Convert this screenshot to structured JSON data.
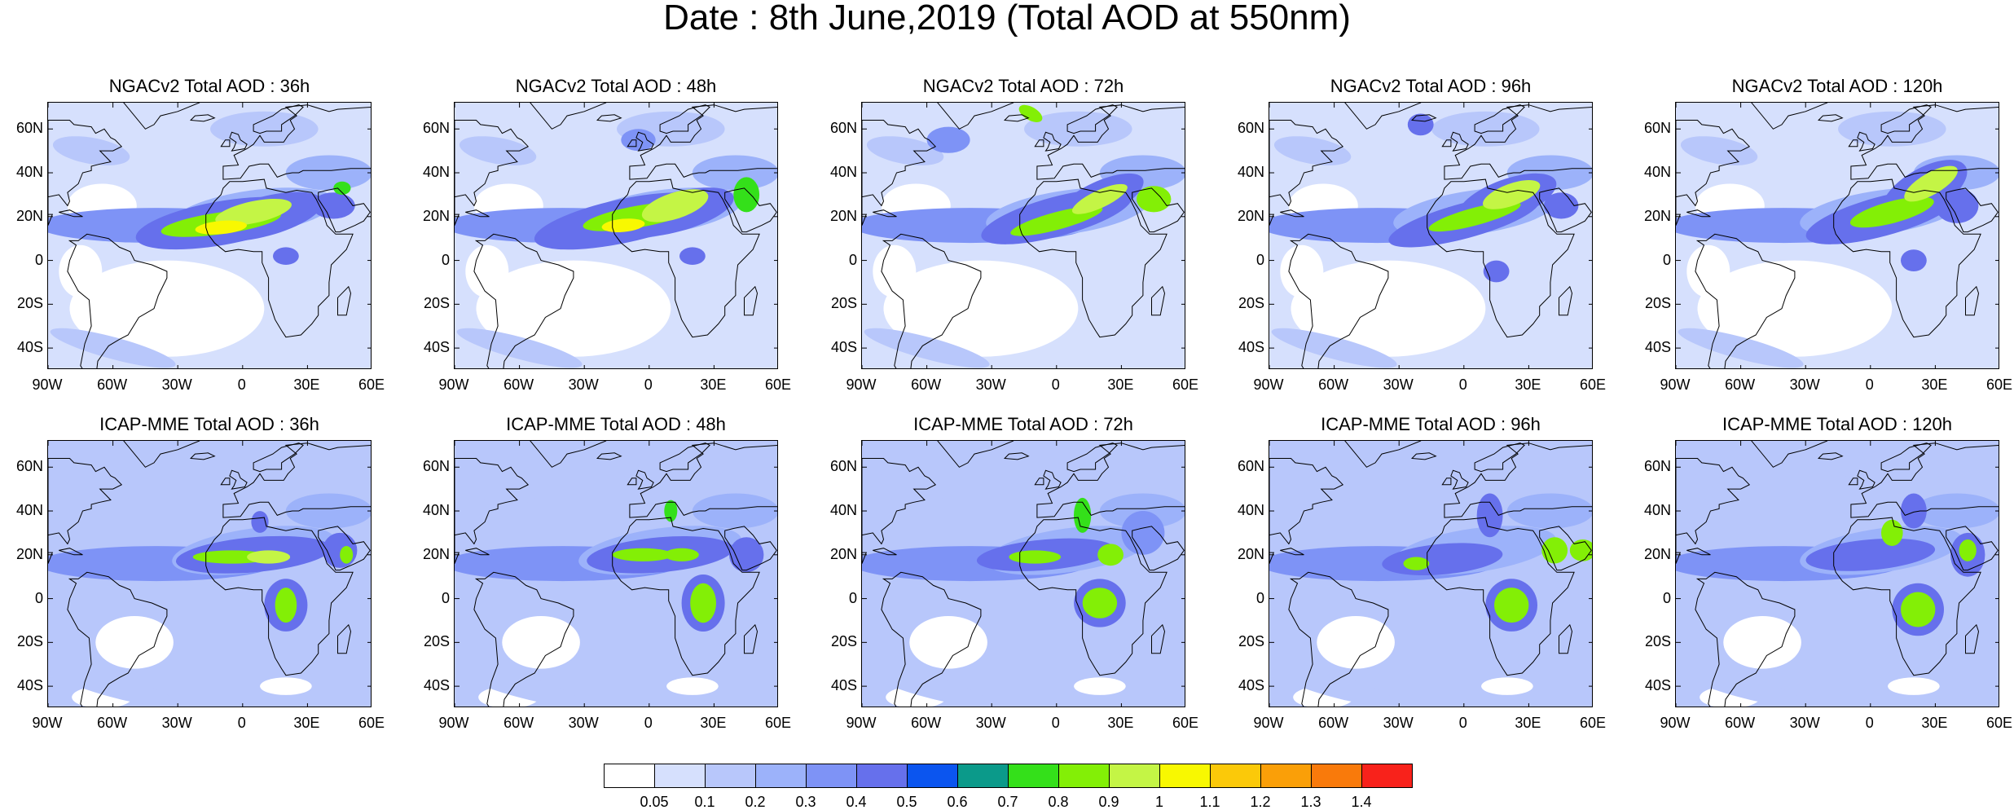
{
  "title": "Date : 8th June,2019 (Total AOD at 550nm)",
  "lat_labels": [
    "60N",
    "40N",
    "20N",
    "0",
    "20S",
    "40S"
  ],
  "lon_labels": [
    "90W",
    "60W",
    "30W",
    "0",
    "30E",
    "60E"
  ],
  "rows": [
    {
      "model": "NGACv2",
      "panels": [
        {
          "title": "NGACv2 Total AOD : 36h",
          "forecast_hour": 36
        },
        {
          "title": "NGACv2 Total AOD : 48h",
          "forecast_hour": 48
        },
        {
          "title": "NGACv2 Total AOD : 72h",
          "forecast_hour": 72
        },
        {
          "title": "NGACv2 Total AOD : 96h",
          "forecast_hour": 96
        },
        {
          "title": "NGACv2 Total AOD : 120h",
          "forecast_hour": 120
        }
      ]
    },
    {
      "model": "ICAP-MME",
      "panels": [
        {
          "title": "ICAP-MME Total AOD : 36h",
          "forecast_hour": 36
        },
        {
          "title": "ICAP-MME Total AOD : 48h",
          "forecast_hour": 48
        },
        {
          "title": "ICAP-MME Total AOD : 72h",
          "forecast_hour": 72
        },
        {
          "title": "ICAP-MME Total AOD : 96h",
          "forecast_hour": 96
        },
        {
          "title": "ICAP-MME Total AOD : 120h",
          "forecast_hour": 120
        }
      ]
    }
  ],
  "colorbar": {
    "colors": [
      "#ffffff",
      "#d6e0fd",
      "#b8c7fb",
      "#9cb2fa",
      "#7e93f6",
      "#6670ec",
      "#0b55ef",
      "#0b9a8a",
      "#34e01a",
      "#83ef06",
      "#c4f545",
      "#f8f801",
      "#fbc909",
      "#fa9f08",
      "#f97a0b",
      "#f8221b"
    ],
    "labels": [
      "0.05",
      "0.1",
      "0.2",
      "0.3",
      "0.4",
      "0.5",
      "0.6",
      "0.7",
      "0.8",
      "0.9",
      "1",
      "1.1",
      "1.2",
      "1.3",
      "1.4"
    ]
  }
}
